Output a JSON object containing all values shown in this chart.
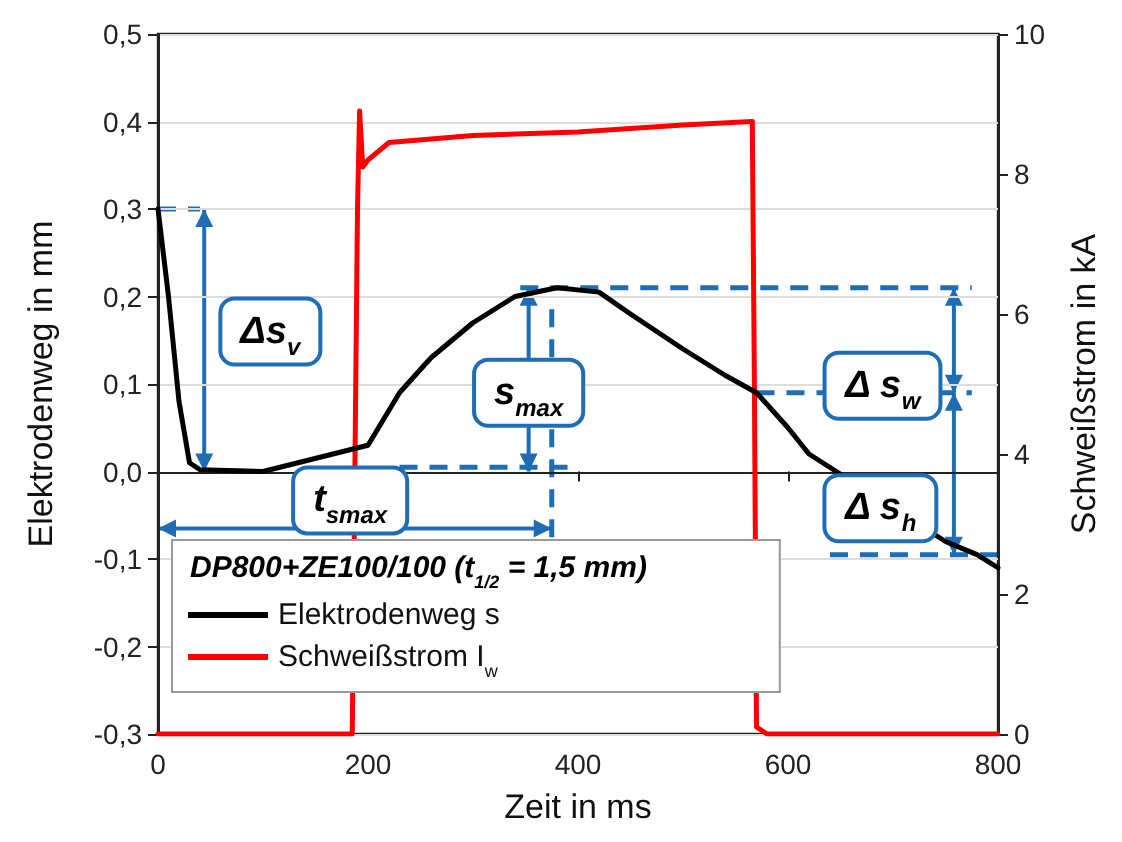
{
  "chart_data": {
    "type": "line",
    "xlabel": "Zeit in ms",
    "ylabel": "Elektrodenweg in mm",
    "y2label": "Schweißstrom in kA",
    "legend_title": "DP800+ZE100/100 (t$_{1/2}$ = 1,5 mm)",
    "legend": "bottom left",
    "grid": "y",
    "marker": "none",
    "line_style": "solid",
    "xlim": [
      0,
      800
    ],
    "xticks": [
      0,
      200,
      400,
      600,
      800
    ],
    "ylim": [
      -0.3,
      0.5
    ],
    "yticks": [
      {
        "value": -0.3,
        "label": "-0,3"
      },
      {
        "value": -0.2,
        "label": "-0,2"
      },
      {
        "value": -0.1,
        "label": "-0,1"
      },
      {
        "value": 0,
        "label": "0,0"
      },
      {
        "value": 0.1,
        "label": "0,1"
      },
      {
        "value": 0.2,
        "label": "0,2"
      },
      {
        "value": 0.3,
        "label": "0,3"
      },
      {
        "value": 0.4,
        "label": "0,4"
      },
      {
        "value": 0.5,
        "label": "0,5"
      }
    ],
    "y2lim": [
      0,
      10
    ],
    "y2ticks": [
      0,
      2,
      4,
      6,
      8,
      10
    ],
    "annotations": [
      "Δs$_{v}$",
      "s$_{max}$",
      "t$_{smax}$",
      "Δ s$_{w}$",
      "Δ s$_{h}$"
    ],
    "series": [
      {
        "name": "Elektrodenweg s",
        "color": "#000000",
        "x": [
          0,
          10,
          20,
          30,
          40,
          100,
          150,
          180,
          190,
          200,
          230,
          260,
          300,
          340,
          380,
          420,
          450,
          500,
          540,
          570,
          600,
          620,
          650,
          700,
          750,
          780,
          800
        ],
        "values": [
          0.3,
          0.2,
          0.08,
          0.01,
          0.002,
          0,
          null,
          null,
          null,
          0.03,
          0.09,
          0.13,
          0.17,
          0.2,
          0.21,
          0.205,
          0.18,
          0.14,
          0.11,
          0.09,
          0.05,
          0.02,
          null,
          null,
          -0.08,
          -0.095,
          -0.11
        ]
      },
      {
        "name": "Schweißstrom I$_{w}$",
        "color": "#ff0000",
        "axis": "y2",
        "x": [
          0,
          185,
          188,
          190,
          192,
          195,
          200,
          220,
          300,
          400,
          500,
          566,
          568,
          570,
          580,
          800
        ],
        "values": [
          0,
          0,
          null,
          7.5,
          8.9,
          8.1,
          8.2,
          8.45,
          8.55,
          8.6,
          8.7,
          8.75,
          5,
          0.1,
          0,
          0
        ]
      }
    ]
  }
}
